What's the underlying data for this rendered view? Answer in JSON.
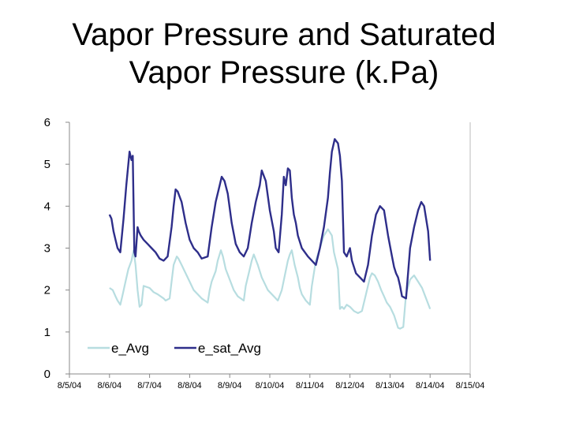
{
  "title_lines": [
    "Vapor Pressure and Saturated",
    "Vapor Pressure (k.Pa)"
  ],
  "chart_data": {
    "type": "line",
    "title": "Vapor Pressure and Saturated Vapor Pressure (k.Pa)",
    "xlabel": "",
    "ylabel": "",
    "ylim": [
      0,
      6
    ],
    "yticks": [
      0,
      1,
      2,
      3,
      4,
      5,
      6
    ],
    "xlim": [
      0,
      10
    ],
    "xtick_labels": [
      "8/5/04",
      "8/6/04",
      "8/7/04",
      "8/8/04",
      "8/9/04",
      "8/10/04",
      "8/11/04",
      "8/12/04",
      "8/13/04",
      "8/14/04",
      "8/15/04"
    ],
    "grid": false,
    "legend_position": "bottom-left",
    "series": [
      {
        "name": "e_Avg",
        "color": "#b7dde0",
        "x": [
          1.0,
          1.08,
          1.15,
          1.2,
          1.27,
          1.33,
          1.4,
          1.47,
          1.55,
          1.6,
          1.65,
          1.7,
          1.75,
          1.8,
          1.85,
          2.0,
          2.1,
          2.2,
          2.35,
          2.4,
          2.5,
          2.55,
          2.6,
          2.68,
          2.72,
          2.8,
          2.9,
          3.0,
          3.1,
          3.2,
          3.3,
          3.45,
          3.5,
          3.55,
          3.65,
          3.7,
          3.78,
          3.83,
          3.9,
          4.0,
          4.1,
          4.2,
          4.35,
          4.4,
          4.5,
          4.55,
          4.6,
          4.7,
          4.8,
          4.95,
          5.1,
          5.2,
          5.3,
          5.45,
          5.5,
          5.55,
          5.62,
          5.7,
          5.75,
          5.8,
          5.9,
          6.0,
          6.05,
          6.15,
          6.25,
          6.35,
          6.45,
          6.55,
          6.6,
          6.7,
          6.75,
          6.8,
          6.85,
          6.92,
          7.0,
          7.1,
          7.2,
          7.3,
          7.4,
          7.5,
          7.55,
          7.62,
          7.7,
          7.78,
          7.85,
          7.92,
          8.0,
          8.1,
          8.2,
          8.25,
          8.33,
          8.4,
          8.5,
          8.55,
          8.6,
          8.7,
          8.8,
          8.9,
          9.0
        ],
        "values": [
          2.05,
          2.0,
          1.85,
          1.75,
          1.65,
          1.9,
          2.2,
          2.5,
          2.7,
          2.95,
          2.6,
          2.0,
          1.6,
          1.65,
          2.1,
          2.05,
          1.95,
          1.9,
          1.8,
          1.75,
          1.8,
          2.2,
          2.6,
          2.8,
          2.75,
          2.6,
          2.4,
          2.2,
          2.0,
          1.9,
          1.8,
          1.7,
          2.0,
          2.2,
          2.45,
          2.7,
          2.95,
          2.8,
          2.5,
          2.25,
          2.0,
          1.85,
          1.75,
          2.1,
          2.5,
          2.7,
          2.85,
          2.6,
          2.3,
          2.0,
          1.85,
          1.75,
          2.0,
          2.7,
          2.85,
          2.95,
          2.6,
          2.3,
          2.05,
          1.9,
          1.75,
          1.65,
          2.1,
          2.7,
          3.0,
          3.3,
          3.45,
          3.3,
          2.9,
          2.5,
          1.55,
          1.6,
          1.55,
          1.65,
          1.6,
          1.5,
          1.45,
          1.5,
          1.9,
          2.3,
          2.4,
          2.35,
          2.2,
          2.0,
          1.85,
          1.7,
          1.6,
          1.4,
          1.1,
          1.08,
          1.12,
          1.9,
          2.25,
          2.3,
          2.35,
          2.2,
          2.05,
          1.8,
          1.55
        ]
      },
      {
        "name": "e_sat_Avg",
        "color": "#2e2e8a",
        "x": [
          1.0,
          1.05,
          1.1,
          1.15,
          1.2,
          1.27,
          1.35,
          1.42,
          1.5,
          1.55,
          1.58,
          1.62,
          1.65,
          1.7,
          1.73,
          1.78,
          1.85,
          1.95,
          2.05,
          2.15,
          2.25,
          2.35,
          2.45,
          2.55,
          2.6,
          2.65,
          2.7,
          2.8,
          2.9,
          3.0,
          3.1,
          3.2,
          3.3,
          3.45,
          3.55,
          3.65,
          3.75,
          3.8,
          3.87,
          3.95,
          4.05,
          4.15,
          4.25,
          4.35,
          4.45,
          4.55,
          4.65,
          4.75,
          4.8,
          4.9,
          5.0,
          5.1,
          5.15,
          5.22,
          5.3,
          5.35,
          5.4,
          5.45,
          5.5,
          5.55,
          5.6,
          5.65,
          5.7,
          5.8,
          5.95,
          6.05,
          6.15,
          6.25,
          6.35,
          6.45,
          6.5,
          6.55,
          6.62,
          6.7,
          6.75,
          6.8,
          6.85,
          6.92,
          7.0,
          7.05,
          7.15,
          7.25,
          7.35,
          7.45,
          7.55,
          7.65,
          7.75,
          7.85,
          7.95,
          8.05,
          8.1,
          8.15,
          8.2,
          8.25,
          8.3,
          8.4,
          8.5,
          8.6,
          8.7,
          8.78,
          8.85,
          8.95,
          9.0
        ],
        "values": [
          3.8,
          3.7,
          3.4,
          3.2,
          3.0,
          2.9,
          3.7,
          4.5,
          5.3,
          5.1,
          5.2,
          2.9,
          2.8,
          3.5,
          3.4,
          3.3,
          3.2,
          3.1,
          3.0,
          2.9,
          2.75,
          2.7,
          2.8,
          3.5,
          4.0,
          4.4,
          4.35,
          4.1,
          3.6,
          3.2,
          3.0,
          2.9,
          2.75,
          2.8,
          3.5,
          4.1,
          4.5,
          4.7,
          4.6,
          4.3,
          3.6,
          3.1,
          2.9,
          2.8,
          3.0,
          3.6,
          4.1,
          4.5,
          4.85,
          4.6,
          3.9,
          3.4,
          3.0,
          2.9,
          3.8,
          4.7,
          4.5,
          4.9,
          4.85,
          4.2,
          3.8,
          3.6,
          3.3,
          3.0,
          2.8,
          2.7,
          2.6,
          3.0,
          3.5,
          4.2,
          4.8,
          5.3,
          5.6,
          5.5,
          5.2,
          4.6,
          2.9,
          2.8,
          3.0,
          2.7,
          2.4,
          2.3,
          2.2,
          2.6,
          3.3,
          3.8,
          4.0,
          3.9,
          3.3,
          2.8,
          2.55,
          2.4,
          2.3,
          2.1,
          1.85,
          1.8,
          3.0,
          3.5,
          3.9,
          4.1,
          4.0,
          3.4,
          2.7
        ]
      }
    ]
  }
}
